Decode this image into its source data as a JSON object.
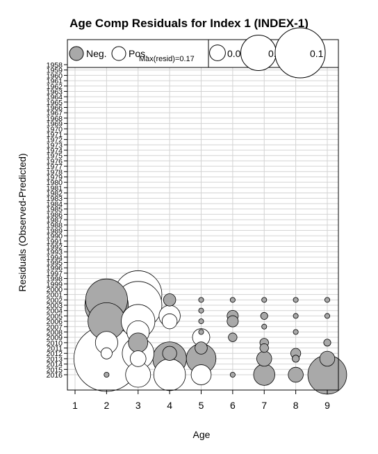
{
  "chart_data": {
    "type": "bubble",
    "title": "Age Comp Residuals for Index 1 (INDEX-1)",
    "xlabel": "Age",
    "ylabel": "Residuals (Observed-Predicted)",
    "x_ticks": [
      1,
      2,
      3,
      4,
      5,
      6,
      7,
      8,
      9
    ],
    "xlim": [
      0.7,
      9.3
    ],
    "ylim": [
      1958,
      2018.5
    ],
    "year_start": 1958,
    "year_end": 2016,
    "max_resid_label": "Max(resid)=0.17",
    "max_resid": 0.17,
    "legend_sign": [
      {
        "label": "Neg.",
        "color": "#a9a9a9"
      },
      {
        "label": "Pos.",
        "color": "#ffffff"
      }
    ],
    "legend_sizes": [
      {
        "label": "0.01",
        "value": 0.01
      },
      {
        "label": "0.05",
        "value": 0.05
      },
      {
        "label": "0.1",
        "value": 0.1
      }
    ],
    "neg_color": "#a9a9a9",
    "pos_color": "#ffffff",
    "points": [
      {
        "year": 2002,
        "age": 2,
        "resid": -0.07
      },
      {
        "year": 2003,
        "age": 2,
        "resid": -0.075
      },
      {
        "year": 2006,
        "age": 2,
        "resid": -0.055
      },
      {
        "year": 2010,
        "age": 2,
        "resid": 0.02
      },
      {
        "year": 2013,
        "age": 2,
        "resid": 0.17
      },
      {
        "year": 2012,
        "age": 2,
        "resid": 0.005
      },
      {
        "year": 2016,
        "age": 2,
        "resid": -0.001
      },
      {
        "year": 2001,
        "age": 3,
        "resid": 0.09
      },
      {
        "year": 2003,
        "age": 3,
        "resid": 0.09
      },
      {
        "year": 2006,
        "age": 3,
        "resid": 0.045
      },
      {
        "year": 2008,
        "age": 3,
        "resid": 0.02
      },
      {
        "year": 2010,
        "age": 3,
        "resid": -0.015
      },
      {
        "year": 2012,
        "age": 3,
        "resid": 0.04
      },
      {
        "year": 2013,
        "age": 3,
        "resid": 0.01
      },
      {
        "year": 2016,
        "age": 3,
        "resid": 0.025
      },
      {
        "year": 2002,
        "age": 4,
        "resid": -0.006
      },
      {
        "year": 2005,
        "age": 4,
        "resid": 0.018
      },
      {
        "year": 2006,
        "age": 4,
        "resid": 0.009
      },
      {
        "year": 2012,
        "age": 4,
        "resid": -0.008
      },
      {
        "year": 2013,
        "age": 4,
        "resid": -0.045
      },
      {
        "year": 2016,
        "age": 4,
        "resid": 0.04
      },
      {
        "year": 2002,
        "age": 5,
        "resid": -0.001
      },
      {
        "year": 2004,
        "age": 5,
        "resid": -0.001
      },
      {
        "year": 2006,
        "age": 5,
        "resid": -0.001
      },
      {
        "year": 2008,
        "age": 5,
        "resid": -0.001
      },
      {
        "year": 2009,
        "age": 5,
        "resid": 0.012
      },
      {
        "year": 2011,
        "age": 5,
        "resid": -0.006
      },
      {
        "year": 2013,
        "age": 5,
        "resid": -0.035
      },
      {
        "year": 2016,
        "age": 5,
        "resid": 0.016
      },
      {
        "year": 2002,
        "age": 6,
        "resid": -0.001
      },
      {
        "year": 2005,
        "age": 6,
        "resid": -0.005
      },
      {
        "year": 2006,
        "age": 6,
        "resid": -0.005
      },
      {
        "year": 2009,
        "age": 6,
        "resid": -0.003
      },
      {
        "year": 2016,
        "age": 6,
        "resid": -0.001
      },
      {
        "year": 2002,
        "age": 7,
        "resid": -0.001
      },
      {
        "year": 2005,
        "age": 7,
        "resid": -0.002
      },
      {
        "year": 2007,
        "age": 7,
        "resid": -0.001
      },
      {
        "year": 2010,
        "age": 7,
        "resid": -0.003
      },
      {
        "year": 2011,
        "age": 7,
        "resid": -0.003
      },
      {
        "year": 2013,
        "age": 7,
        "resid": -0.009
      },
      {
        "year": 2016,
        "age": 7,
        "resid": -0.018
      },
      {
        "year": 2002,
        "age": 8,
        "resid": -0.001
      },
      {
        "year": 2005,
        "age": 8,
        "resid": -0.001
      },
      {
        "year": 2008,
        "age": 8,
        "resid": -0.001
      },
      {
        "year": 2012,
        "age": 8,
        "resid": -0.004
      },
      {
        "year": 2013,
        "age": 8,
        "resid": -0.002
      },
      {
        "year": 2016,
        "age": 8,
        "resid": -0.009
      },
      {
        "year": 2002,
        "age": 9,
        "resid": -0.001
      },
      {
        "year": 2005,
        "age": 9,
        "resid": -0.001
      },
      {
        "year": 2010,
        "age": 9,
        "resid": -0.002
      },
      {
        "year": 2013,
        "age": 9,
        "resid": -0.009
      },
      {
        "year": 2016,
        "age": 9,
        "resid": -0.06
      }
    ]
  }
}
